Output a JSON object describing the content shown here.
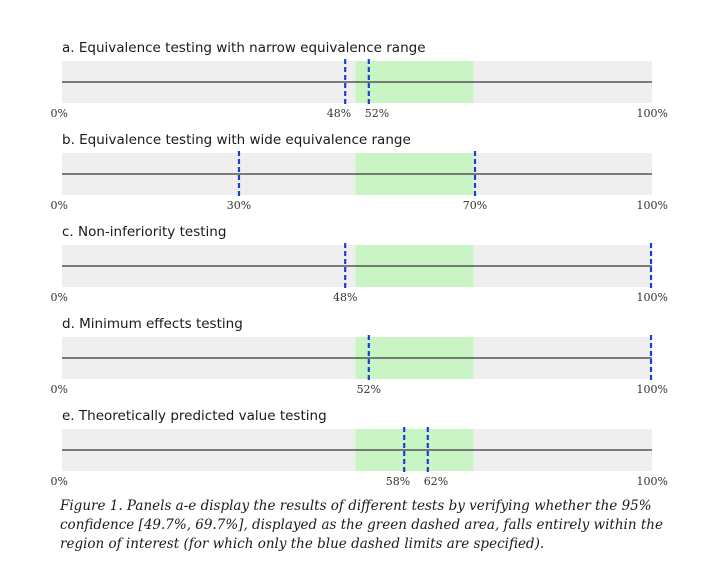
{
  "chart_data": {
    "type": "interval",
    "x_unit": "%",
    "xlim": [
      0,
      100
    ],
    "confidence_interval": [
      49.7,
      69.7
    ],
    "confidence_color": "#c9f5c4",
    "band_color": "#efefef",
    "limit_color": "#1a3fd6",
    "panels": [
      {
        "title": "a. Equivalence testing with narrow equivalence range",
        "limits": [
          48,
          52
        ],
        "tick_labels": [
          {
            "value": 0,
            "label": "0%"
          },
          {
            "value": 48,
            "label": "48%"
          },
          {
            "value": 52,
            "label": "52%"
          },
          {
            "value": 100,
            "label": "100%"
          }
        ]
      },
      {
        "title": "b. Equivalence testing with wide equivalence range",
        "limits": [
          30,
          70
        ],
        "tick_labels": [
          {
            "value": 0,
            "label": "0%"
          },
          {
            "value": 30,
            "label": "30%"
          },
          {
            "value": 70,
            "label": "70%"
          },
          {
            "value": 100,
            "label": "100%"
          }
        ]
      },
      {
        "title": "c. Non-inferiority testing",
        "limits": [
          48,
          100
        ],
        "tick_labels": [
          {
            "value": 0,
            "label": "0%"
          },
          {
            "value": 48,
            "label": "48%"
          },
          {
            "value": 100,
            "label": "100%"
          }
        ]
      },
      {
        "title": "d. Minimum effects testing",
        "limits": [
          52,
          100
        ],
        "tick_labels": [
          {
            "value": 0,
            "label": "0%"
          },
          {
            "value": 52,
            "label": "52%"
          },
          {
            "value": 100,
            "label": "100%"
          }
        ]
      },
      {
        "title": "e. Theoretically predicted value testing",
        "limits": [
          58,
          62
        ],
        "tick_labels": [
          {
            "value": 0,
            "label": "0%"
          },
          {
            "value": 58,
            "label": "58%"
          },
          {
            "value": 62,
            "label": "62%"
          },
          {
            "value": 100,
            "label": "100%"
          }
        ]
      }
    ]
  },
  "caption": "Figure 1. Panels a-e display the results of different tests by verifying whether the 95% confidence [49.7%, 69.7%], displayed as the green dashed area, falls entirely within the region of interest (for which only the blue dashed limits are specified)."
}
